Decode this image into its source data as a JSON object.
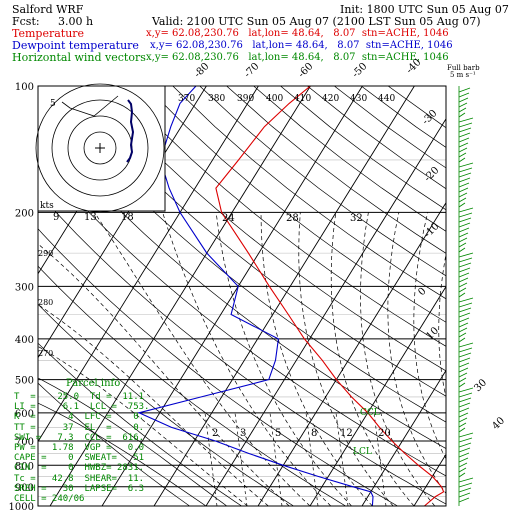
{
  "header": {
    "model": "Salford WRF",
    "init": "Init: 1800 UTC Sun 05 Aug 07",
    "fcst_label": "Fcst:",
    "fcst_value": "3.00 h",
    "valid": "Valid: 2100 UTC Sun 05 Aug 07 (2100 LST Sun 05 Aug 07)",
    "lines": [
      {
        "name": "Temperature",
        "info": "x,y= 62.08,230.76   lat,lon= 48.64,   8.07  stn=ACHE, 1046",
        "color": "#dd0000"
      },
      {
        "name": "Dewpoint temperature",
        "info": "x,y= 62.08,230.76   lat,lon= 48.64,   8.07  stn=ACHE, 1046",
        "color": "#0000cc"
      },
      {
        "name": "Horizontal wind vectors",
        "info": "x,y= 62.08,230.76   lat,lon= 48.64,   8.07  stn=ACHE, 1046",
        "color": "#008800"
      }
    ]
  },
  "hodograph": {
    "units": "kts",
    "ring_labels": [
      "5"
    ],
    "speed_labels": [
      "9",
      "13",
      "18"
    ]
  },
  "barb_legend": {
    "title": "Full barb",
    "units": "5 m s⁻¹"
  },
  "chart_data": {
    "type": "line",
    "title": "",
    "pressure_levels": [
      100,
      200,
      300,
      400,
      500,
      600,
      700,
      800,
      900,
      1000
    ],
    "pressure_labels": [
      "100",
      "200",
      "300",
      "400",
      "500",
      "600",
      "700",
      "800",
      "900",
      "1000"
    ],
    "isotherm_labels": [
      "-80",
      "-70",
      "-60",
      "-50",
      "-40",
      "-30",
      "-20",
      "-10",
      "0",
      "10",
      "30",
      "40"
    ],
    "theta_labels": [
      "370",
      "380",
      "390",
      "400",
      "410",
      "420",
      "430",
      "440"
    ],
    "mixing_ratio_labels": [
      "2",
      "3",
      "5",
      "8",
      "12",
      "20"
    ],
    "mid_labels": [
      "24",
      "28",
      "32",
      "290",
      "280",
      "270"
    ],
    "series": [
      {
        "name": "Temperature",
        "color": "#dd0000",
        "p": [
          1000,
          950,
          925,
          900,
          850,
          800,
          750,
          700,
          650,
          600,
          550,
          500,
          450,
          400,
          350,
          300,
          250,
          200,
          175,
          150,
          125,
          110,
          100
        ],
        "t": [
          22,
          23,
          24,
          23,
          20,
          16,
          12,
          8,
          4,
          0,
          -5,
          -10,
          -15,
          -21,
          -27,
          -34,
          -42,
          -52,
          -56,
          -55,
          -54,
          -52,
          -50
        ]
      },
      {
        "name": "Dewpoint temperature",
        "color": "#0000cc",
        "p": [
          1000,
          950,
          925,
          900,
          850,
          800,
          750,
          700,
          650,
          600,
          550,
          500,
          450,
          400,
          350,
          300,
          250,
          200,
          175,
          150,
          125,
          110,
          100
        ],
        "t": [
          12,
          11,
          10,
          6,
          -2,
          -10,
          -18,
          -26,
          -36,
          -44,
          -34,
          -23,
          -24,
          -26,
          -38,
          -40,
          -50,
          -60,
          -65,
          -70,
          -72,
          -73,
          -72
        ]
      }
    ]
  },
  "parcel_info": {
    "title": "Parcel info",
    "rows": [
      "T  =    25.0  Td =  11.1",
      "LI =     6.1  LCL =  753.",
      "K  =      4  LFC =    0.",
      "TT =     37  EL  =    0.",
      "SWI =   7.3  CCL =  616.",
      "PW =   1.78  VGP =   0.0",
      "CAPE =    0  SWEAT=   51",
      "CIN  =    0  HWBZ= 2831.",
      "Tc =   42.8  SHEAR=  11.",
      "SREH =   30  LAPSE=  6.3",
      "CELL = 240/06"
    ]
  },
  "annotations": {
    "ccl": "CCL",
    "lcl": "LCL"
  }
}
